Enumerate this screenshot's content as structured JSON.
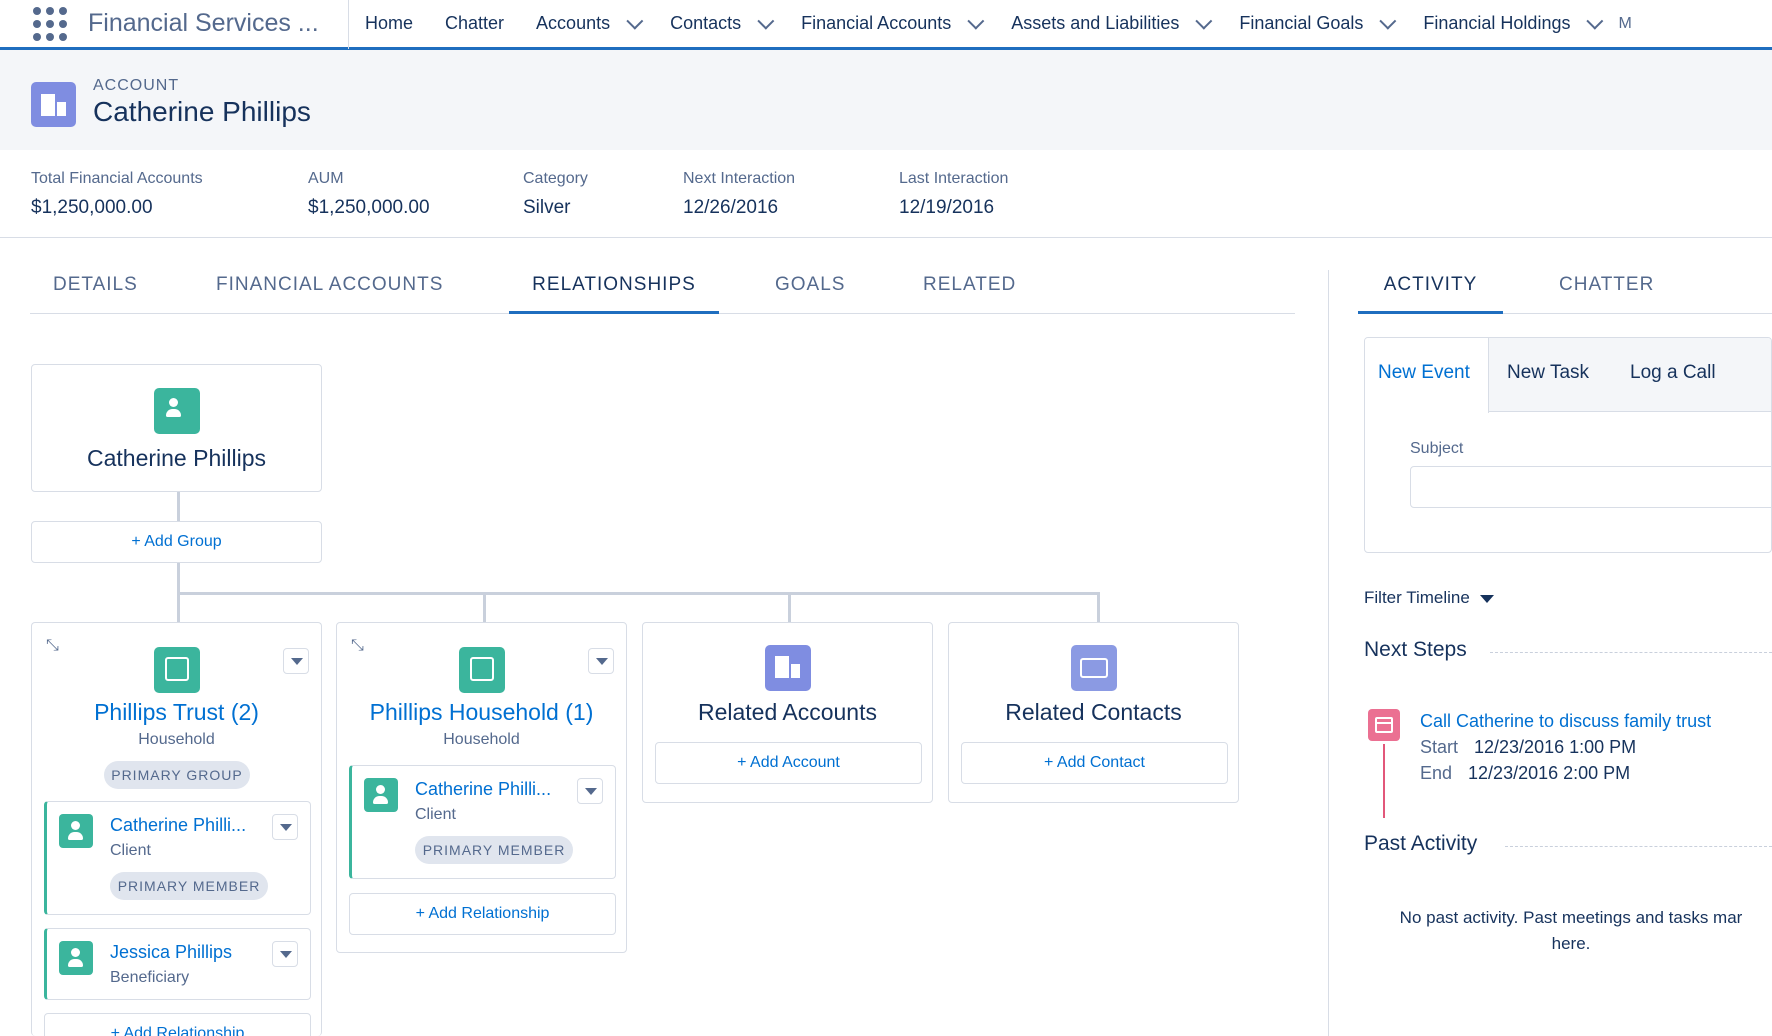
{
  "app": {
    "name": "Financial Services ..."
  },
  "nav": {
    "items": [
      {
        "label": "Home",
        "menu": false
      },
      {
        "label": "Chatter",
        "menu": false
      },
      {
        "label": "Accounts",
        "menu": true
      },
      {
        "label": "Contacts",
        "menu": true
      },
      {
        "label": "Financial Accounts",
        "menu": true
      },
      {
        "label": "Assets and Liabilities",
        "menu": true
      },
      {
        "label": "Financial Goals",
        "menu": true
      },
      {
        "label": "Financial Holdings",
        "menu": true
      }
    ],
    "more": "M"
  },
  "record": {
    "type": "ACCOUNT",
    "name": "Catherine Phillips"
  },
  "highlights": [
    {
      "label": "Total Financial Accounts",
      "value": "$1,250,000.00"
    },
    {
      "label": "AUM",
      "value": "$1,250,000.00"
    },
    {
      "label": "Category",
      "value": "Silver"
    },
    {
      "label": "Next Interaction",
      "value": "12/26/2016"
    },
    {
      "label": "Last Interaction",
      "value": "12/19/2016"
    }
  ],
  "tabs": [
    "DETAILS",
    "FINANCIAL ACCOUNTS",
    "RELATIONSHIPS",
    "GOALS",
    "RELATED"
  ],
  "active_tab": "RELATIONSHIPS",
  "tree": {
    "root": {
      "name": "Catherine Phillips",
      "add_group": "+ Add Group"
    },
    "groups": [
      {
        "name": "Phillips Trust (2)",
        "type": "Household",
        "badge": "PRIMARY GROUP",
        "members": [
          {
            "name": "Catherine Philli...",
            "role": "Client",
            "badge": "PRIMARY MEMBER"
          },
          {
            "name": "Jessica Phillips",
            "role": "Beneficiary",
            "badge": ""
          }
        ],
        "add": "+ Add Relationship"
      },
      {
        "name": "Phillips Household (1)",
        "type": "Household",
        "badge": "",
        "members": [
          {
            "name": "Catherine Philli...",
            "role": "Client",
            "badge": "PRIMARY MEMBER"
          }
        ],
        "add": "+ Add Relationship"
      }
    ],
    "related_accounts": {
      "title": "Related Accounts",
      "add": "+ Add Account"
    },
    "related_contacts": {
      "title": "Related Contacts",
      "add": "+ Add Contact"
    }
  },
  "activity": {
    "tabs": [
      "ACTIVITY",
      "CHATTER"
    ],
    "composer_tabs": [
      "New Event",
      "New Task",
      "Log a Call"
    ],
    "subject_label": "Subject",
    "subject_value": "",
    "filter": "Filter Timeline",
    "next_steps": "Next Steps",
    "event": {
      "title": "Call Catherine to discuss family trust",
      "start_label": "Start",
      "start": "12/23/2016 1:00 PM",
      "end_label": "End",
      "end": "12/23/2016 2:00 PM"
    },
    "past_activity": "Past Activity",
    "empty_line1": "No past activity. Past meetings and tasks mar",
    "empty_line2": "here."
  },
  "colors": {
    "brand": "#1f6ebf",
    "link": "#0070d2",
    "contact_green": "#3bb59d",
    "account_blue": "#7f8de1",
    "event_pink": "#eb7092"
  },
  "icons": [
    "app-launcher-icon",
    "account-icon",
    "contact-icon",
    "household-icon",
    "related-accounts-icon",
    "related-contacts-icon",
    "event-icon",
    "chevron-down-icon",
    "collapse-icon",
    "dropdown-icon"
  ]
}
